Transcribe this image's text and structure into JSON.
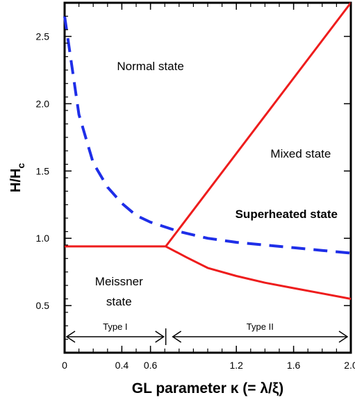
{
  "chart_data": {
    "type": "line",
    "xlabel": "GL parameter κ (= λ/ξ)",
    "ylabel": {
      "main": "H/H",
      "sub": "c"
    },
    "xlim": [
      0,
      2.0
    ],
    "ylim": [
      0.15,
      2.75
    ],
    "x_ticks": [
      {
        "value": 0,
        "label": "0"
      },
      {
        "value": 0.4,
        "label": "0.4"
      },
      {
        "value": 0.6,
        "label": "0.6"
      },
      {
        "value": 1.2,
        "label": "1.2"
      },
      {
        "value": 1.6,
        "label": "1.6"
      },
      {
        "value": 2.0,
        "label": "2.0"
      }
    ],
    "y_ticks": [
      {
        "value": 0.5,
        "label": "0.5"
      },
      {
        "value": 1.0,
        "label": "1.0"
      },
      {
        "value": 1.5,
        "label": "1.5"
      },
      {
        "value": 2.0,
        "label": "2.0"
      },
      {
        "value": 2.5,
        "label": "2.5"
      }
    ],
    "grid": false,
    "series": [
      {
        "style": "solid",
        "color": "#ee1c1c",
        "x": [
          0.0,
          0.707
        ],
        "y": [
          0.94,
          0.94
        ]
      },
      {
        "style": "solid",
        "color": "#ee1c1c",
        "x": [
          0.707,
          2.0
        ],
        "y": [
          0.94,
          2.75
        ]
      },
      {
        "style": "solid",
        "color": "#ee1c1c",
        "x": [
          0.707,
          0.85,
          1.0,
          1.2,
          1.4,
          1.6,
          1.8,
          1.95,
          2.0
        ],
        "y": [
          0.94,
          0.86,
          0.78,
          0.72,
          0.67,
          0.63,
          0.59,
          0.56,
          0.55
        ]
      },
      {
        "style": "dashed",
        "color": "#1e2ee8",
        "x": [
          0.0,
          0.1,
          0.2,
          0.3,
          0.4,
          0.5,
          0.6,
          0.8,
          1.0,
          1.2,
          1.4,
          1.6,
          1.8,
          2.0
        ],
        "y": [
          2.65,
          1.92,
          1.56,
          1.38,
          1.26,
          1.17,
          1.12,
          1.05,
          1.0,
          0.97,
          0.95,
          0.93,
          0.91,
          0.89
        ]
      }
    ],
    "annotations": [
      {
        "text": "Normal state",
        "x": 0.6,
        "y": 2.25,
        "color": "#000000",
        "bold": false
      },
      {
        "text": "Mixed state",
        "x": 1.65,
        "y": 1.6,
        "color": "#000000",
        "bold": false
      },
      {
        "text": "Superheated state",
        "x": 1.55,
        "y": 1.15,
        "color": "#1e2ee8",
        "bold": true
      },
      {
        "text": "Meissner",
        "x": 0.38,
        "y": 0.65,
        "color": "#000000",
        "bold": false
      },
      {
        "text": "state",
        "x": 0.38,
        "y": 0.5,
        "color": "#000000",
        "bold": false
      }
    ],
    "type_ranges": [
      {
        "label": "Type I",
        "from": 0.0,
        "to": 0.707
      },
      {
        "label": "Type II",
        "from": 0.707,
        "to": 2.0
      }
    ]
  }
}
